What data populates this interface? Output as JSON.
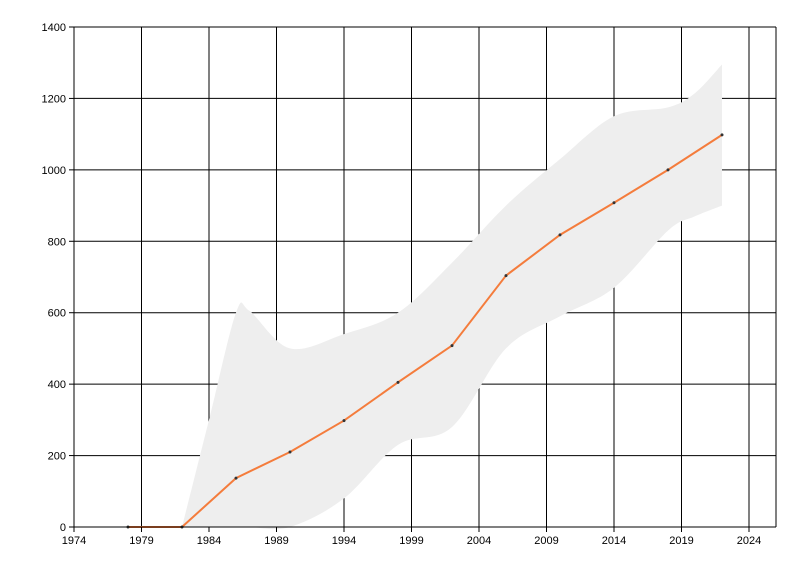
{
  "chart_data": {
    "type": "line",
    "title": "",
    "xlabel": "",
    "ylabel": "",
    "xlim": [
      1974,
      2026
    ],
    "ylim": [
      0,
      1400
    ],
    "x_ticks": [
      1974,
      1979,
      1984,
      1989,
      1994,
      1999,
      2004,
      2009,
      2014,
      2019,
      2024
    ],
    "y_ticks": [
      0,
      200,
      400,
      600,
      800,
      1000,
      1200,
      1400
    ],
    "grid": true,
    "legend": "none",
    "series": [
      {
        "x": [
          1978,
          1982,
          1986,
          1990,
          1994,
          1998,
          2002,
          2006,
          2010,
          2014,
          2018,
          2022
        ],
        "values": [
          0,
          0,
          137,
          210,
          298,
          405,
          508,
          704,
          818,
          908,
          1000,
          1098
        ],
        "color": "#f47c3c"
      }
    ],
    "band": {
      "x": [
        1982,
        1984,
        1986,
        1987,
        1990,
        1994,
        1998,
        2002,
        2006,
        2010,
        2014,
        2018,
        2020,
        2022
      ],
      "upper": [
        0,
        300,
        600,
        605,
        500,
        540,
        600,
        740,
        900,
        1030,
        1150,
        1175,
        1215,
        1295
      ],
      "lower": [
        0,
        0,
        0,
        0,
        0,
        80,
        230,
        280,
        500,
        590,
        670,
        830,
        870,
        900
      ],
      "color": "#eeeeee"
    }
  }
}
